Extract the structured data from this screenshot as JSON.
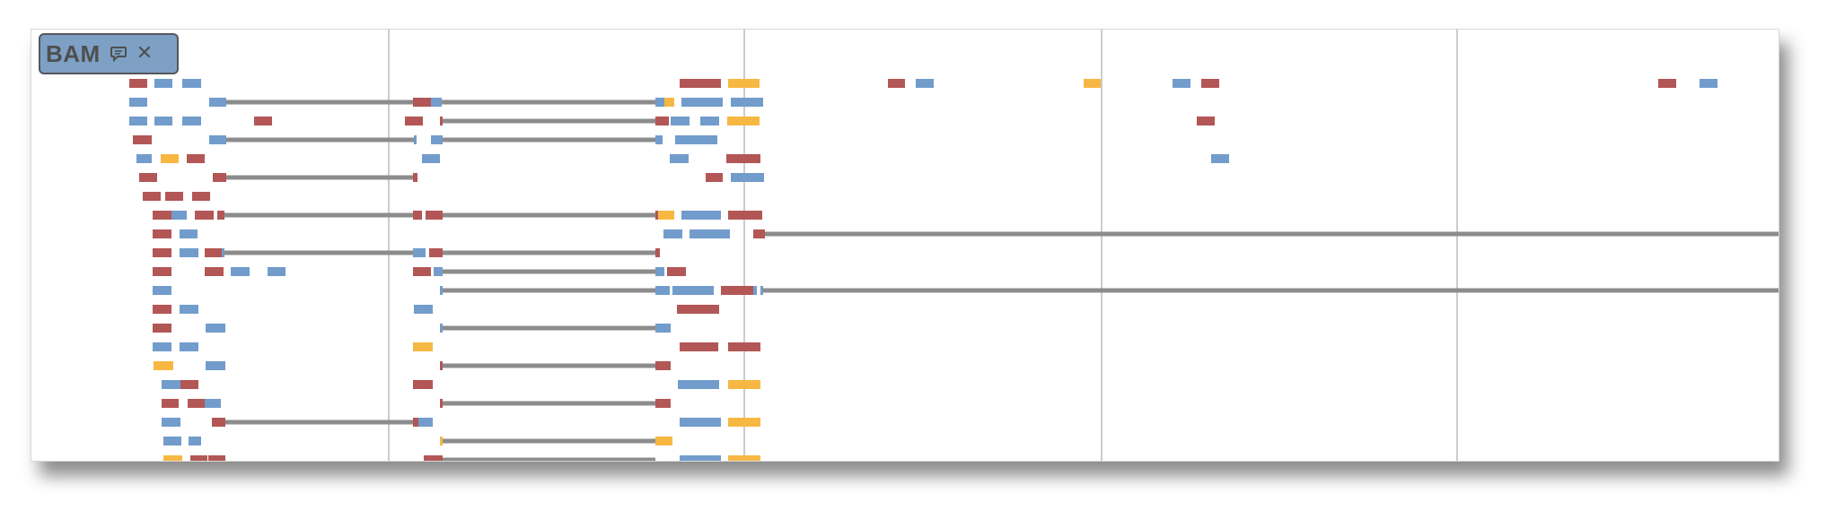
{
  "track": {
    "name": "BAM",
    "icons": {
      "comment": "comment-icon",
      "close": "close-icon"
    }
  },
  "colors": {
    "forward_read": "#729ccb",
    "reverse_read": "#b35656",
    "mapq_zero_read": "#f7b843",
    "intron_line": "#8c8c8c",
    "grid_line": "#cccccc",
    "label_background": "#7da0c4"
  }
}
